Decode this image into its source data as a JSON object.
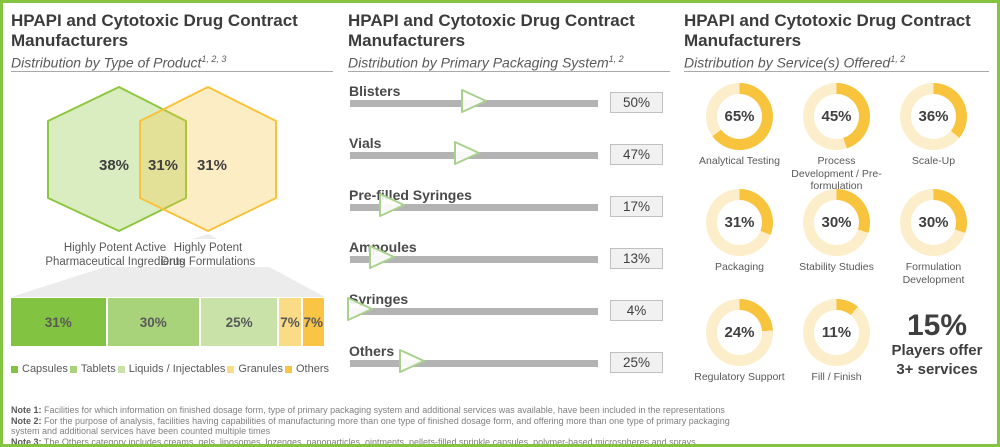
{
  "colors": {
    "frame_border": "#85C440",
    "hex_green_stroke": "#8DC63F",
    "hex_green_fill": "rgba(141,198,63,0.32)",
    "hex_yellow_stroke": "#F9C23C",
    "hex_yellow_fill": "rgba(250,196,61,0.30)",
    "funnel_gray": "#ECECEC",
    "slider_track": "#B3B3B3",
    "slider_handle_stroke": "#A9D18E",
    "donut_gold": "#F9C43D",
    "donut_cream": "#FCEECB"
  },
  "panels": {
    "product": {
      "title": "HPAPI and Cytotoxic Drug Contract Manufacturers",
      "subtitle": "Distribution by Type of Product",
      "subtitle_sup": "1, 2, 3",
      "venn": {
        "left": {
          "value": "38%",
          "label_line1": "Highly Potent Active",
          "label_line2": "Pharmaceutical Ingredients"
        },
        "overlap": {
          "value": "31%"
        },
        "right": {
          "value": "31%",
          "label_line1": "Highly Potent",
          "label_line2": "Drug Formulations"
        }
      },
      "bar": {
        "segments": [
          {
            "label": "Capsules",
            "value": 31,
            "display": "31%",
            "color": "#82C341"
          },
          {
            "label": "Tablets",
            "value": 30,
            "display": "30%",
            "color": "#A9D37B"
          },
          {
            "label": "Liquids / Injectables",
            "value": 25,
            "display": "25%",
            "color": "#C8E2A7"
          },
          {
            "label": "Granules",
            "value": 7,
            "display": "7%",
            "color": "#FBDC86"
          },
          {
            "label": "Others",
            "value": 7,
            "display": "7%",
            "color": "#FAC445"
          }
        ]
      }
    },
    "packaging": {
      "title": "HPAPI and Cytotoxic Drug Contract Manufacturers",
      "subtitle": "Distribution by Primary Packaging System",
      "subtitle_sup": "1, 2",
      "sliders": [
        {
          "name": "Blisters",
          "value": 50,
          "display": "50%"
        },
        {
          "name": "Vials",
          "value": 47,
          "display": "47%"
        },
        {
          "name": "Pre-filled Syringes",
          "value": 17,
          "display": "17%"
        },
        {
          "name": "Ampoules",
          "value": 13,
          "display": "13%"
        },
        {
          "name": "Syringes",
          "value": 4,
          "display": "4%"
        },
        {
          "name": "Others",
          "value": 25,
          "display": "25%"
        }
      ]
    },
    "services": {
      "title": "HPAPI and Cytotoxic Drug Contract Manufacturers",
      "subtitle": "Distribution by Service(s) Offered",
      "subtitle_sup": "1, 2",
      "donuts": [
        {
          "value": 65,
          "display": "65%",
          "label": "Analytical Testing"
        },
        {
          "value": 45,
          "display": "45%",
          "label": "Process Development / Pre-formulation"
        },
        {
          "value": 36,
          "display": "36%",
          "label": "Scale-Up"
        },
        {
          "value": 31,
          "display": "31%",
          "label": "Packaging"
        },
        {
          "value": 30,
          "display": "30%",
          "label": "Stability Studies"
        },
        {
          "value": 30,
          "display": "30%",
          "label": "Formulation Development"
        },
        {
          "value": 24,
          "display": "24%",
          "label": "Regulatory Support"
        },
        {
          "value": 11,
          "display": "11%",
          "label": "Fill / Finish"
        }
      ],
      "highlight": {
        "value": "15%",
        "line1": "Players offer",
        "line2": "3+ services"
      }
    }
  },
  "notes": [
    {
      "label": "Note 1:",
      "text": " Facilities for which information on finished dosage form, type of primary packaging system and additional services was available, have been included in the representations"
    },
    {
      "label": "Note 2:",
      "text": " For the purpose of analysis, facilities having capabilities of manufacturing more than one type of finished dosage form, and offering more than one type of primary packaging system and additional services have been counted multiple times"
    },
    {
      "label": "Note 3:",
      "text": " The Others category includes creams, gels, liposomes, lozenges, nanoparticles, ointments, pellets-filled sprinkle capsules, polymer-based microspheres and sprays"
    }
  ],
  "chart_data": [
    {
      "type": "other",
      "subtype": "venn-hexagons",
      "title": "Distribution by Type of Product",
      "sets": [
        {
          "label": "Highly Potent Active Pharmaceutical Ingredients",
          "value": 38
        },
        {
          "label": "Highly Potent Drug Formulations",
          "value": 31
        }
      ],
      "overlap_value": 31,
      "unit": "%"
    },
    {
      "type": "bar",
      "subtype": "stacked-horizontal",
      "title": "Highly Potent Drug Formulations breakdown",
      "categories": [
        "Capsules",
        "Tablets",
        "Liquids / Injectables",
        "Granules",
        "Others"
      ],
      "values": [
        31,
        30,
        25,
        7,
        7
      ],
      "unit": "%"
    },
    {
      "type": "bar",
      "subtype": "slider-gauges",
      "title": "Distribution by Primary Packaging System",
      "categories": [
        "Blisters",
        "Vials",
        "Pre-filled Syringes",
        "Ampoules",
        "Syringes",
        "Others"
      ],
      "values": [
        50,
        47,
        17,
        13,
        4,
        25
      ],
      "xlim": [
        0,
        100
      ],
      "unit": "%"
    },
    {
      "type": "pie",
      "subtype": "donut-multiples",
      "title": "Distribution by Service(s) Offered",
      "categories": [
        "Analytical Testing",
        "Process Development / Pre-formulation",
        "Scale-Up",
        "Packaging",
        "Stability Studies",
        "Formulation Development",
        "Regulatory Support",
        "Fill / Finish"
      ],
      "values": [
        65,
        45,
        36,
        31,
        30,
        30,
        24,
        11
      ],
      "annotation": "15% Players offer 3+ services",
      "unit": "%"
    }
  ]
}
